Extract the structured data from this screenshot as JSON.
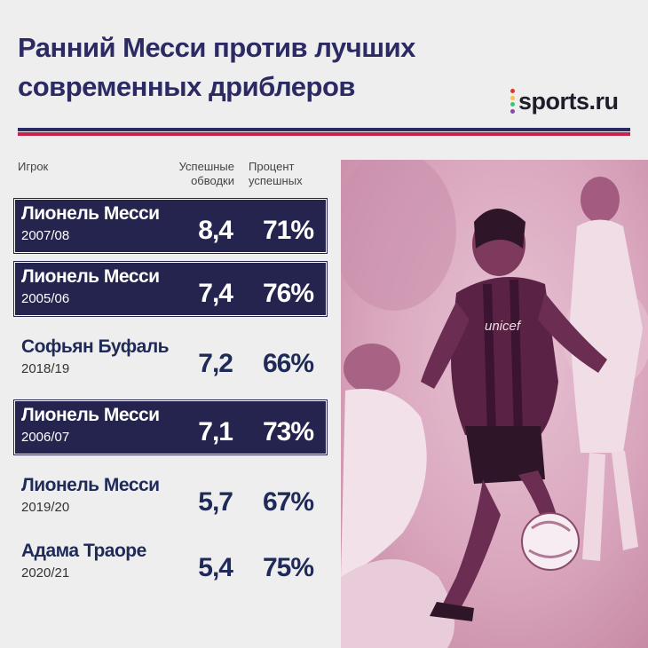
{
  "title_lines": [
    "Ранний Месси против лучших",
    "современных дриблеров"
  ],
  "brand": {
    "name": "sports.ru",
    "dot_colors": [
      "#e3342f",
      "#f6c344",
      "#2ecc71",
      "#8e44ad"
    ]
  },
  "colors": {
    "title": "#2b2a63",
    "highlight_row": "#24244e",
    "rule_navy": "#2b2a63",
    "rule_red": "#c8214c",
    "photo_tint": "#d9a9c1"
  },
  "headers": {
    "player": "Игрок",
    "dribbles": [
      "Успешные",
      "обводки"
    ],
    "percent": [
      "Процент",
      "успешных"
    ]
  },
  "rows": [
    {
      "name": "Лионель Месси",
      "season": "2007/08",
      "dribbles": "8,4",
      "percent": "71%",
      "highlight": true
    },
    {
      "name": "Лионель Месси",
      "season": "2005/06",
      "dribbles": "7,4",
      "percent": "76%",
      "highlight": true
    },
    {
      "name": "Софьян Буфаль",
      "season": "2018/19",
      "dribbles": "7,2",
      "percent": "66%",
      "highlight": false
    },
    {
      "name": "Лионель Месси",
      "season": "2006/07",
      "dribbles": "7,1",
      "percent": "73%",
      "highlight": true
    },
    {
      "name": "Лионель Месси",
      "season": "2019/20",
      "dribbles": "5,7",
      "percent": "67%",
      "highlight": false
    },
    {
      "name": "Адама Траоре",
      "season": "2020/21",
      "dribbles": "5,4",
      "percent": "75%",
      "highlight": false
    }
  ],
  "photo": {
    "shirt_text": "unicef"
  }
}
